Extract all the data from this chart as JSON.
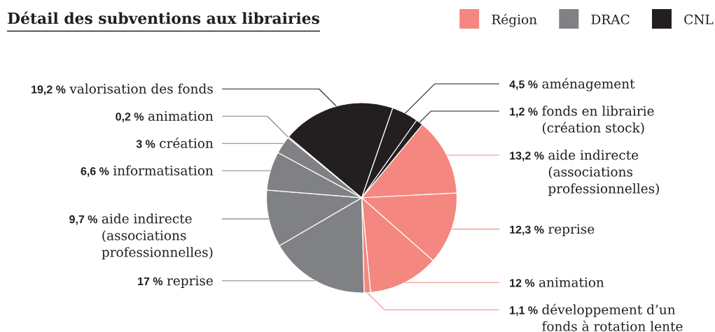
{
  "chart_data": {
    "type": "pie",
    "title": "Détail des subventions aux librairies",
    "categories": [
      "aide indirecte (associations professionnelles)",
      "reprise",
      "animation",
      "développement d’un fonds à rotation lente",
      "reprise",
      "aide indirecte (associations professionnelles)",
      "informatisation",
      "création",
      "animation",
      "valorisation des fonds",
      "aménagement",
      "fonds en librairie (création stock)"
    ],
    "values": [
      13.2,
      12.3,
      12,
      1.1,
      17,
      9.7,
      6.6,
      3,
      0.2,
      19.2,
      4.5,
      1.2
    ],
    "colors": [
      "#f4877f",
      "#f4877f",
      "#f4877f",
      "#f4877f",
      "#808185",
      "#808185",
      "#808185",
      "#808185",
      "#808185",
      "#231f20",
      "#231f20",
      "#231f20"
    ],
    "value_labels": [
      "13,2 %",
      "12,3 %",
      "12 %",
      "1,1 %",
      "17 %",
      "9,7 %",
      "6,6 %",
      "3 %",
      "0,2 %",
      "19,2 %",
      "4,5 %",
      "1,2 %"
    ],
    "annotations": [
      "Région",
      "DRAC",
      "CNL"
    ]
  }
}
